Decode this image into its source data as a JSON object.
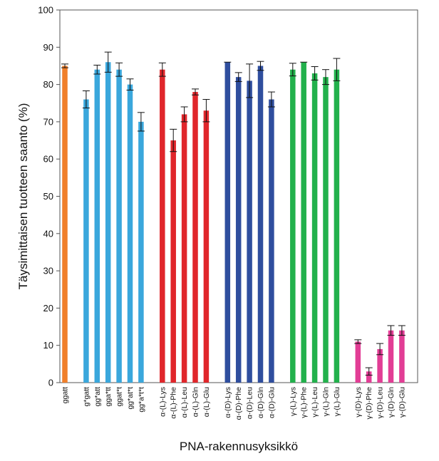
{
  "chart_data": {
    "type": "bar",
    "title": "",
    "xlabel": "PNA-rakennusyksikkö",
    "ylabel": "Täysimittaisen tuotteen saanto (%)",
    "ylim": [
      0,
      100
    ],
    "yticks": [
      "0",
      "10",
      "20",
      "30",
      "40",
      "50",
      "60",
      "70",
      "80",
      "90",
      "100"
    ],
    "grid": false,
    "legend": "none",
    "error_bars": true,
    "groups": [
      {
        "color": "#f07f2a",
        "bars": [
          {
            "label": "ggatt",
            "value": 85,
            "error": 0.5
          }
        ]
      },
      {
        "color": "#3aa7dc",
        "bars": [
          {
            "label": "g*gatt",
            "value": 76,
            "error": 2.3
          },
          {
            "label": "gg*att",
            "value": 84,
            "error": 1.2
          },
          {
            "label": "gga*tt",
            "value": 86,
            "error": 2.7
          },
          {
            "label": "ggat*t",
            "value": 84,
            "error": 1.8
          },
          {
            "label": "gg*at*t",
            "value": 80,
            "error": 1.5
          },
          {
            "label": "gg*a*t*t",
            "value": 70,
            "error": 2.5
          }
        ]
      },
      {
        "color": "#e0262b",
        "bars": [
          {
            "label": "α-(L)-Lys",
            "value": 84,
            "error": 1.8
          },
          {
            "label": "α-(L)-Phe",
            "value": 65,
            "error": 3.0
          },
          {
            "label": "α-(L)-Leu",
            "value": 72,
            "error": 2.0
          },
          {
            "label": "α-(L)-Gln",
            "value": 78,
            "error": 0.8
          },
          {
            "label": "α-(L)-Glu",
            "value": 73,
            "error": 3.0
          }
        ]
      },
      {
        "color": "#2f4e9e",
        "bars": [
          {
            "label": "α-(D)-Lys",
            "value": 86,
            "error": 0.0
          },
          {
            "label": "α-(D)-Phe",
            "value": 82,
            "error": 1.2
          },
          {
            "label": "α-(D)-Leu",
            "value": 81,
            "error": 4.5
          },
          {
            "label": "α-(D)-Gln",
            "value": 85,
            "error": 1.2
          },
          {
            "label": "α-(D)-Glu",
            "value": 76,
            "error": 2.0
          }
        ]
      },
      {
        "color": "#22b14c",
        "bars": [
          {
            "label": "γ-(L)-Lys",
            "value": 84,
            "error": 1.7
          },
          {
            "label": "γ-(L)-Phe",
            "value": 86,
            "error": 0.0
          },
          {
            "label": "γ-(L)-Leu",
            "value": 83,
            "error": 1.8
          },
          {
            "label": "γ-(L)-Gln",
            "value": 82,
            "error": 2.0
          },
          {
            "label": "γ-(L)-Glu",
            "value": 84,
            "error": 3.0
          }
        ]
      },
      {
        "color": "#e23d95",
        "bars": [
          {
            "label": "γ-(D)-Lys",
            "value": 11,
            "error": 0.5
          },
          {
            "label": "γ-(D)-Phe",
            "value": 3,
            "error": 1.0
          },
          {
            "label": "γ-(D)-Leu",
            "value": 9,
            "error": 1.5
          },
          {
            "label": "γ-(D)-Gln",
            "value": 14,
            "error": 1.3
          },
          {
            "label": "γ-(D)-Glu",
            "value": 14,
            "error": 1.3
          }
        ]
      }
    ]
  }
}
